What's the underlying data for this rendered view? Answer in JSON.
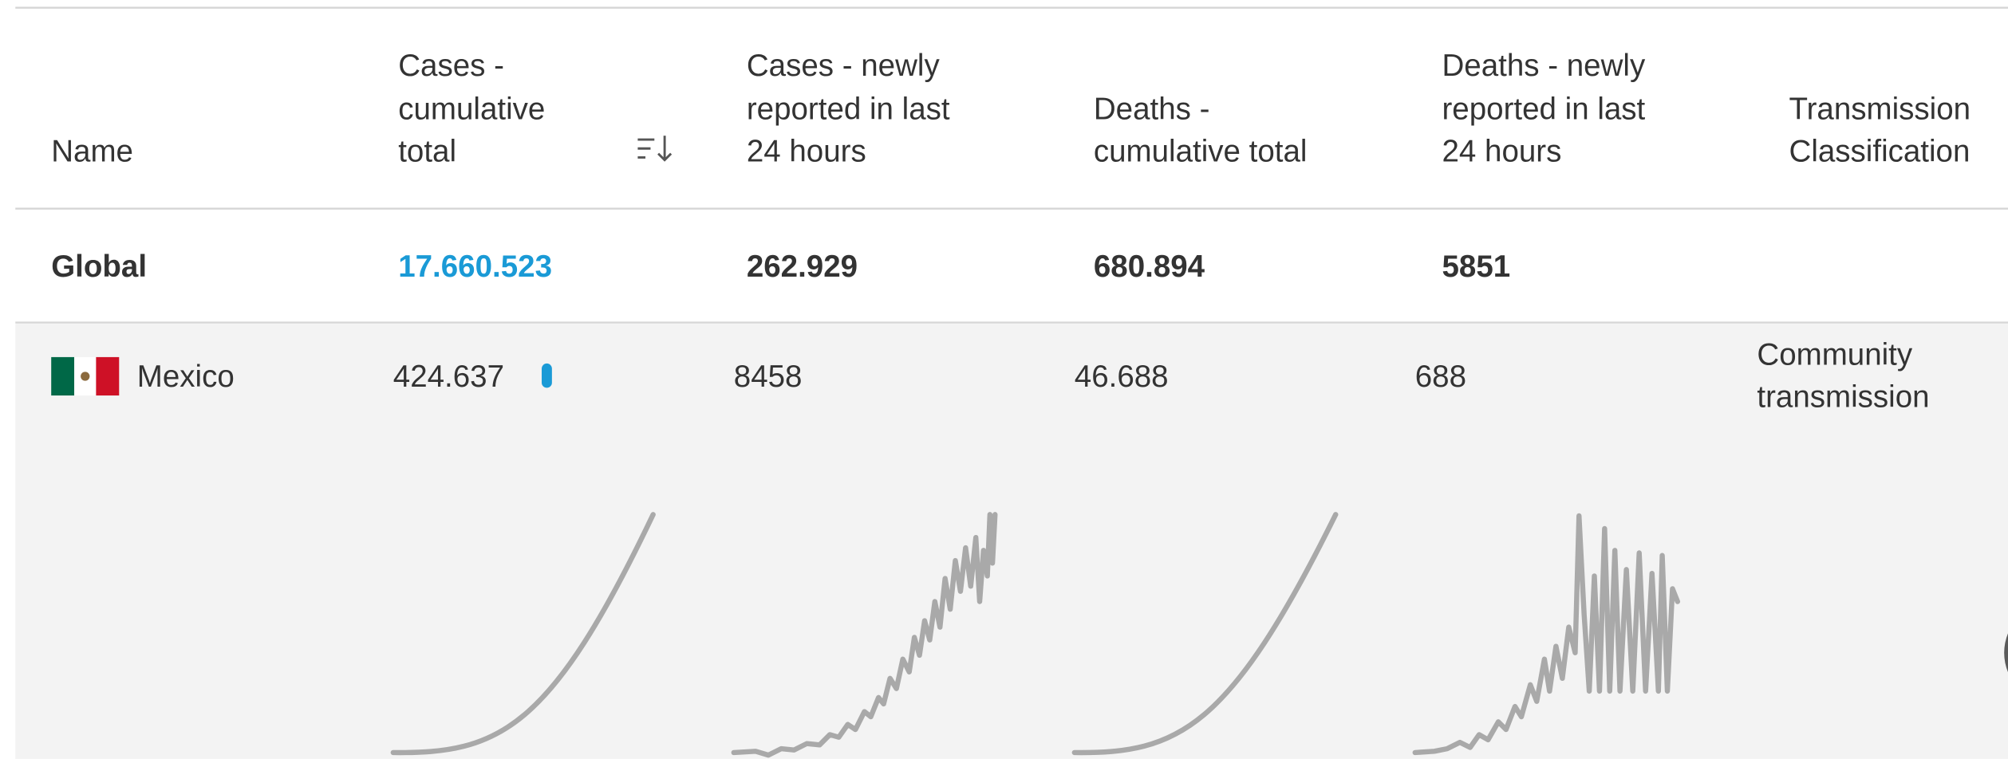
{
  "table": {
    "headers": [
      [
        "Name"
      ],
      [
        "Cases -",
        "cumulative",
        "total"
      ],
      [
        "Cases - newly",
        "reported in last",
        "24 hours"
      ],
      [
        "Deaths -",
        "cumulative total"
      ],
      [
        "Deaths - newly",
        "reported in last",
        "24 hours"
      ],
      [
        "Transmission",
        "Classification"
      ]
    ],
    "rows": [
      [
        "Global",
        "17.660.523",
        "262.929",
        "680.894",
        "5851"
      ],
      [
        "Mexico",
        "424.637",
        "8458",
        "46.688",
        "688",
        [
          "Community",
          "transmission"
        ]
      ]
    ]
  }
}
